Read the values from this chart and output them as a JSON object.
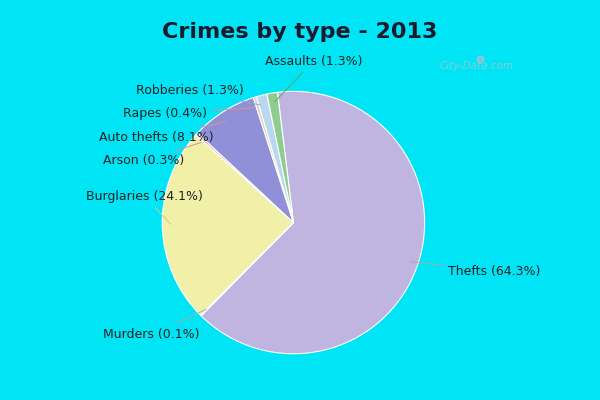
{
  "title": "Crimes by type - 2013",
  "slices": [
    {
      "label": "Thefts",
      "pct": 64.3,
      "color": "#c0b4e0"
    },
    {
      "label": "Murders",
      "pct": 0.1,
      "color": "#d8d0f0"
    },
    {
      "label": "Burglaries",
      "pct": 24.1,
      "color": "#f0f0a8"
    },
    {
      "label": "Arson",
      "pct": 0.3,
      "color": "#f0b0b0"
    },
    {
      "label": "Auto thefts",
      "pct": 8.1,
      "color": "#9090d8"
    },
    {
      "label": "Rapes",
      "pct": 0.4,
      "color": "#e8d0c0"
    },
    {
      "label": "Robberies",
      "pct": 1.3,
      "color": "#b8d8f0"
    },
    {
      "label": "Assaults",
      "pct": 1.3,
      "color": "#90cc90"
    }
  ],
  "bg_cyan": "#00e5f5",
  "bg_light": "#e8f5e8",
  "title_fontsize": 16,
  "label_fontsize": 9,
  "startangle": 97,
  "watermark": "City-Data.com"
}
